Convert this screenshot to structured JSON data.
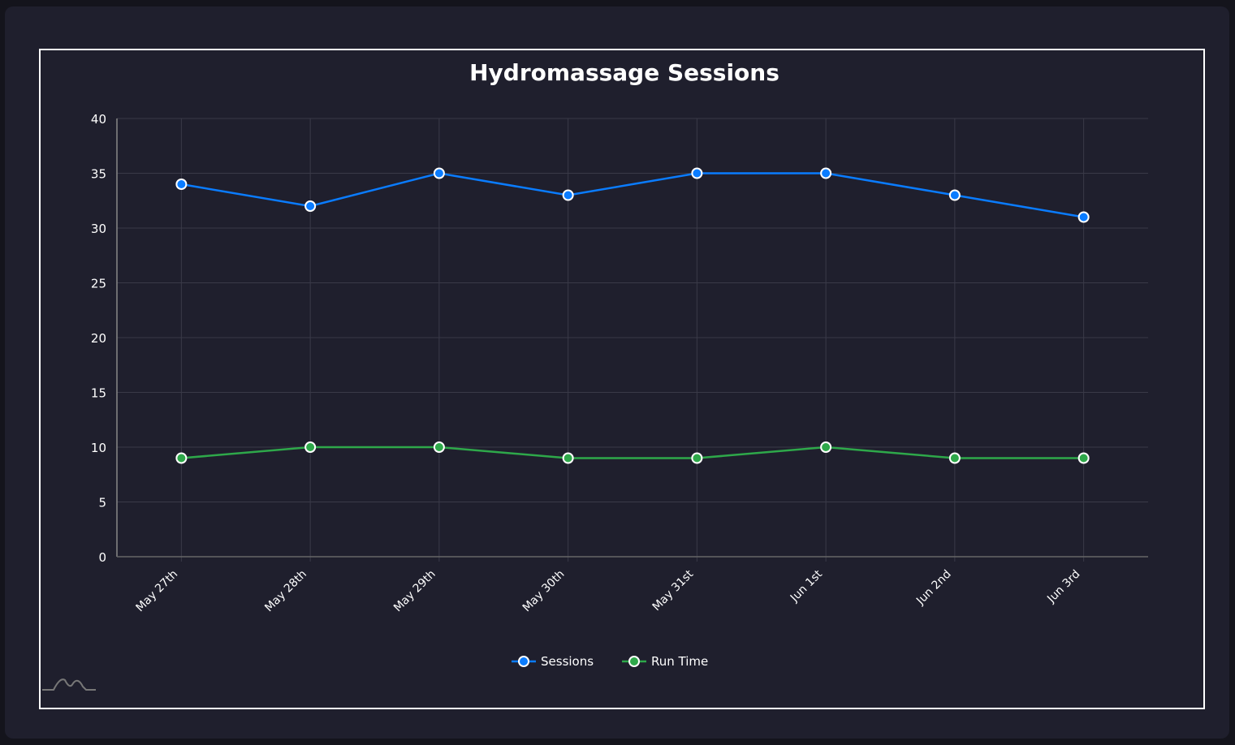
{
  "chart_data": {
    "type": "line",
    "title": "Hydromassage Sessions",
    "categories": [
      "May 27th",
      "May 28th",
      "May 29th",
      "May 30th",
      "May 31st",
      "Jun 1st",
      "Jun 2nd",
      "Jun 3rd"
    ],
    "series": [
      {
        "name": "Sessions",
        "color": "#0a7cff",
        "values": [
          34,
          32,
          35,
          33,
          35,
          35,
          33,
          31
        ]
      },
      {
        "name": "Run Time",
        "color": "#2ea84a",
        "values": [
          9,
          10,
          10,
          9,
          9,
          10,
          9,
          9
        ]
      }
    ],
    "ylim": [
      0,
      40
    ],
    "yticks": [
      0,
      5,
      10,
      15,
      20,
      25,
      30,
      35,
      40
    ],
    "grid": true,
    "legend": "bottom"
  }
}
